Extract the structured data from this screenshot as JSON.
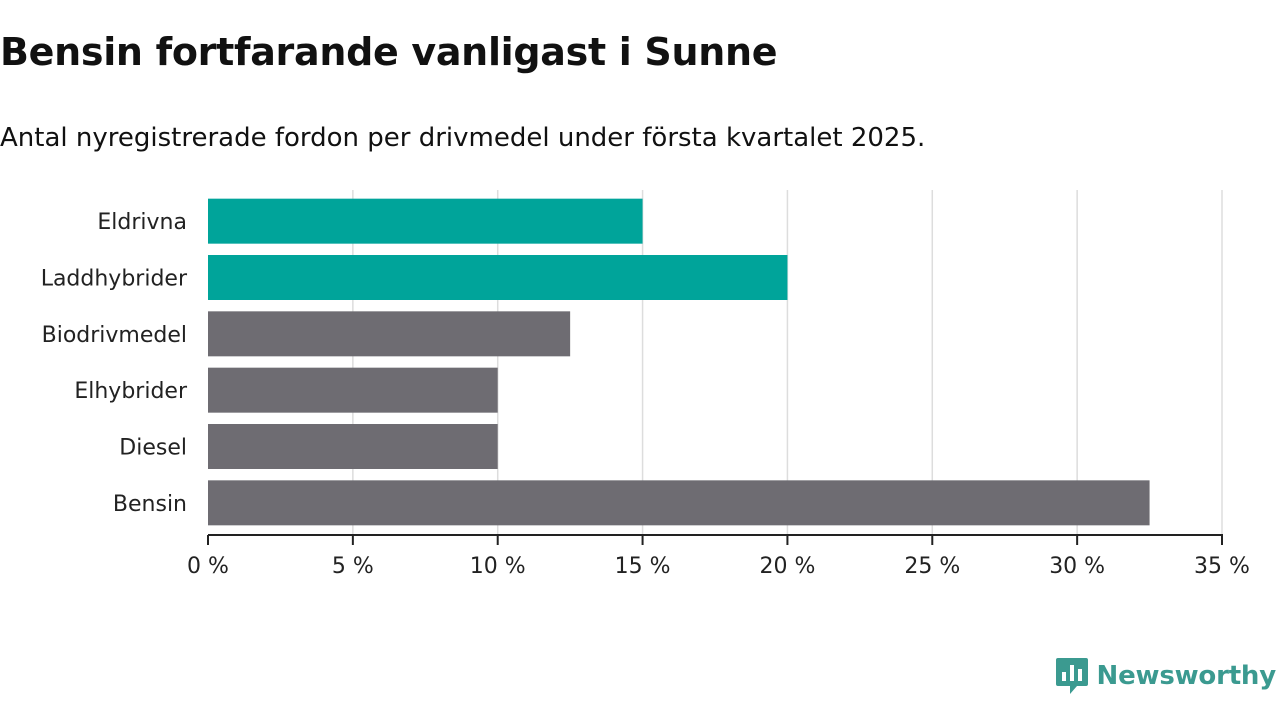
{
  "header": {
    "title": "Bensin fortfarande vanligast i Sunne",
    "subtitle": "Antal nyregistrerade fordon per drivmedel under första kvartalet 2025."
  },
  "brand": {
    "name": "Newsworthy",
    "icon": "newsworthy-logo-icon",
    "color": "#3b9a90"
  },
  "colors": {
    "highlight": "#00a49a",
    "default": "#6e6c72",
    "grid": "#dddddd",
    "axis": "#222222"
  },
  "chart_data": {
    "type": "bar",
    "orientation": "horizontal",
    "categories": [
      "Eldrivna",
      "Laddhybrider",
      "Biodrivmedel",
      "Elhybrider",
      "Diesel",
      "Bensin"
    ],
    "values": [
      15,
      20,
      12.5,
      10,
      10,
      32.5
    ],
    "highlighted": [
      true,
      true,
      false,
      false,
      false,
      false
    ],
    "xlim": [
      0,
      35
    ],
    "xticks": [
      0,
      5,
      10,
      15,
      20,
      25,
      30,
      35
    ],
    "tick_suffix": " %",
    "grid": true,
    "xlabel": "",
    "ylabel": ""
  }
}
